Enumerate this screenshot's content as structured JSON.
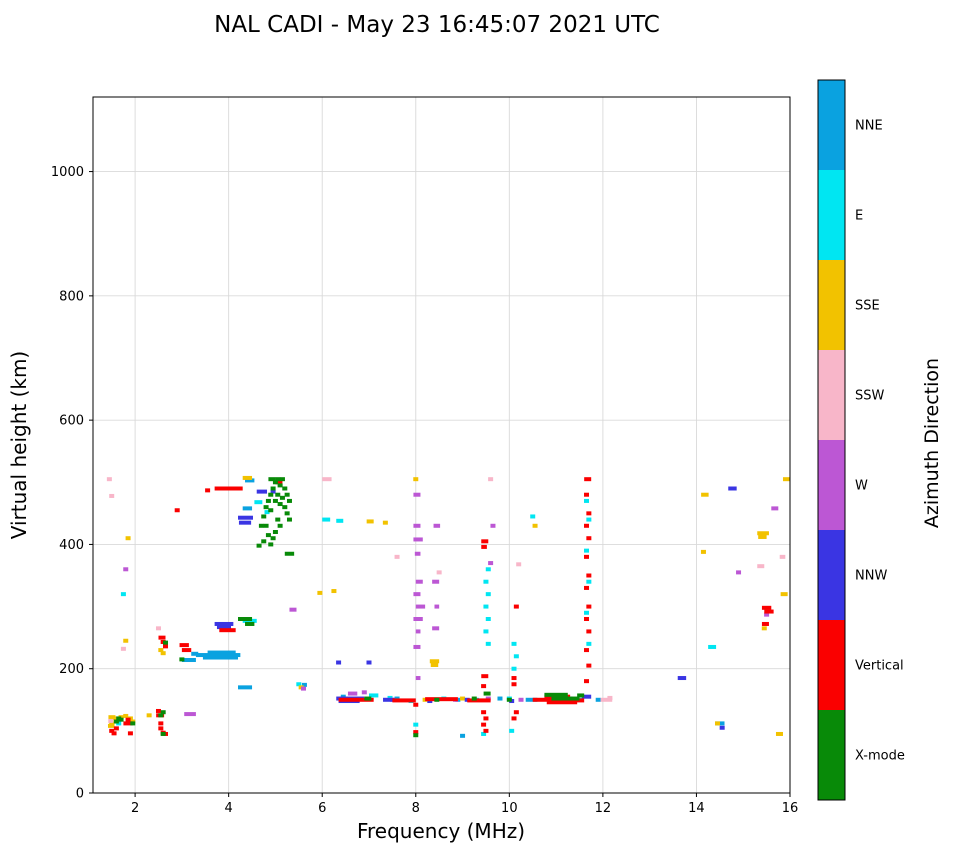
{
  "chart_data": {
    "type": "scatter",
    "title": "NAL CADI - May 23 16:45:07 2021 UTC",
    "xlabel": "Frequency (MHz)",
    "ylabel": "Virtual height (km)",
    "xlim": [
      1.1,
      16
    ],
    "ylim": [
      0,
      1120
    ],
    "xticks": [
      2,
      4,
      6,
      8,
      10,
      12,
      14,
      16
    ],
    "yticks": [
      0,
      200,
      400,
      600,
      800,
      1000
    ],
    "grid": true,
    "legend": {
      "title": "Azimuth Direction",
      "position": "right-colorbar",
      "entries": [
        {
          "label": "NNE",
          "color": "#0AA2E0"
        },
        {
          "label": "E",
          "color": "#00E6F2"
        },
        {
          "label": "SSE",
          "color": "#F2C200"
        },
        {
          "label": "SSW",
          "color": "#F8B6C9"
        },
        {
          "label": "W",
          "color": "#BC57D4"
        },
        {
          "label": "NNW",
          "color": "#3A35E3"
        },
        {
          "label": "Vertical",
          "color": "#FA0000"
        },
        {
          "label": "X-mode",
          "color": "#088A08"
        }
      ]
    },
    "series": [
      {
        "name": "NNE",
        "color": "#0AA2E0",
        "bars": [
          [
            3.3,
            4.25,
            222
          ],
          [
            3.45,
            4.2,
            218
          ],
          [
            3.55,
            4.15,
            226
          ],
          [
            3.2,
            3.35,
            224
          ],
          [
            3.0,
            3.3,
            214
          ],
          [
            4.2,
            4.5,
            170
          ],
          [
            4.3,
            4.5,
            458
          ],
          [
            4.35,
            4.55,
            503
          ],
          [
            14.4,
            14.6,
            112
          ],
          [
            10.35,
            10.6,
            150
          ]
        ],
        "points": [
          [
            7.6,
            152
          ],
          [
            8.9,
            150
          ],
          [
            9.8,
            152
          ],
          [
            11.9,
            150
          ],
          [
            6.45,
            155
          ],
          [
            9.0,
            92
          ],
          [
            5.62,
            174
          ]
        ]
      },
      {
        "name": "E",
        "color": "#00E6F2",
        "bars": [
          [
            4.55,
            4.72,
            468
          ],
          [
            4.3,
            4.6,
            277
          ],
          [
            6.0,
            6.17,
            440
          ],
          [
            6.3,
            6.45,
            438
          ],
          [
            7.0,
            7.2,
            157
          ],
          [
            14.25,
            14.42,
            235
          ]
        ],
        "points": [
          [
            1.65,
            112
          ],
          [
            1.75,
            320
          ],
          [
            5.5,
            175
          ],
          [
            8.0,
            110
          ],
          [
            9.55,
            360
          ],
          [
            9.5,
            340
          ],
          [
            9.55,
            320
          ],
          [
            9.5,
            300
          ],
          [
            9.55,
            280
          ],
          [
            9.5,
            260
          ],
          [
            9.55,
            240
          ],
          [
            9.45,
            95
          ],
          [
            10.1,
            240
          ],
          [
            10.15,
            220
          ],
          [
            10.1,
            200
          ],
          [
            10.05,
            100
          ],
          [
            10.5,
            445
          ],
          [
            11.65,
            470
          ],
          [
            11.7,
            440
          ],
          [
            11.65,
            390
          ],
          [
            11.7,
            340
          ],
          [
            11.65,
            290
          ],
          [
            11.7,
            240
          ],
          [
            6.55,
            150
          ],
          [
            7.45,
            153
          ],
          [
            7.9,
            148
          ],
          [
            8.6,
            152
          ],
          [
            9.3,
            150
          ],
          [
            10.0,
            152
          ],
          [
            10.9,
            148
          ],
          [
            11.5,
            150
          ],
          [
            4.82,
            452
          ]
        ]
      },
      {
        "name": "SSE",
        "color": "#F2C200",
        "bars": [
          [
            1.42,
            1.56,
            108
          ],
          [
            1.43,
            1.58,
            122
          ],
          [
            4.3,
            4.5,
            507
          ],
          [
            6.95,
            7.1,
            437
          ],
          [
            8.3,
            8.5,
            212
          ],
          [
            8.32,
            8.48,
            206
          ],
          [
            14.1,
            14.26,
            480
          ],
          [
            15.3,
            15.55,
            418
          ],
          [
            15.32,
            15.5,
            412
          ],
          [
            15.7,
            15.85,
            95
          ],
          [
            15.8,
            15.95,
            320
          ],
          [
            15.85,
            16.0,
            505
          ]
        ],
        "points": [
          [
            1.5,
            112
          ],
          [
            1.55,
            120
          ],
          [
            1.6,
            118
          ],
          [
            1.7,
            122
          ],
          [
            1.8,
            124
          ],
          [
            1.9,
            120
          ],
          [
            1.95,
            115
          ],
          [
            1.85,
            410
          ],
          [
            1.8,
            245
          ],
          [
            2.3,
            125
          ],
          [
            2.55,
            230
          ],
          [
            2.6,
            225
          ],
          [
            5.55,
            170
          ],
          [
            5.95,
            322
          ],
          [
            6.25,
            325
          ],
          [
            7.35,
            435
          ],
          [
            8.0,
            505
          ],
          [
            8.2,
            150
          ],
          [
            9.0,
            152
          ],
          [
            10.55,
            430
          ],
          [
            14.15,
            388
          ],
          [
            14.45,
            112
          ],
          [
            15.45,
            265
          ]
        ]
      },
      {
        "name": "SSW",
        "color": "#F8B6C9",
        "bars": [
          [
            6.0,
            6.2,
            505
          ],
          [
            11.95,
            12.2,
            150
          ],
          [
            15.3,
            15.45,
            365
          ],
          [
            15.78,
            15.9,
            380
          ]
        ],
        "points": [
          [
            1.45,
            505
          ],
          [
            1.5,
            478
          ],
          [
            1.48,
            116
          ],
          [
            1.75,
            232
          ],
          [
            2.5,
            265
          ],
          [
            7.6,
            380
          ],
          [
            8.5,
            355
          ],
          [
            9.6,
            505
          ],
          [
            10.2,
            368
          ],
          [
            12.15,
            153
          ]
        ]
      },
      {
        "name": "W",
        "color": "#BC57D4",
        "bars": [
          [
            3.05,
            3.3,
            127
          ],
          [
            5.3,
            5.45,
            295
          ],
          [
            6.55,
            6.75,
            160
          ],
          [
            7.95,
            8.1,
            480
          ],
          [
            7.95,
            8.1,
            430
          ],
          [
            7.95,
            8.15,
            408
          ],
          [
            7.98,
            8.1,
            385
          ],
          [
            8.0,
            8.15,
            340
          ],
          [
            7.95,
            8.1,
            320
          ],
          [
            8.0,
            8.2,
            300
          ],
          [
            7.95,
            8.15,
            280
          ],
          [
            8.0,
            8.1,
            260
          ],
          [
            7.95,
            8.1,
            235
          ],
          [
            8.0,
            8.1,
            185
          ],
          [
            8.38,
            8.52,
            430
          ],
          [
            8.35,
            8.5,
            340
          ],
          [
            8.4,
            8.5,
            300
          ],
          [
            8.35,
            8.5,
            265
          ],
          [
            15.6,
            15.75,
            458
          ]
        ],
        "points": [
          [
            1.8,
            360
          ],
          [
            5.6,
            168
          ],
          [
            6.9,
            162
          ],
          [
            7.5,
            150
          ],
          [
            8.85,
            150
          ],
          [
            9.55,
            152
          ],
          [
            9.65,
            430
          ],
          [
            9.6,
            370
          ],
          [
            10.25,
            150
          ],
          [
            11.05,
            152
          ],
          [
            14.9,
            355
          ],
          [
            15.5,
            287
          ]
        ]
      },
      {
        "name": "NNW",
        "color": "#3A35E3",
        "bars": [
          [
            3.7,
            4.1,
            272
          ],
          [
            3.75,
            4.05,
            267
          ],
          [
            4.2,
            4.52,
            443
          ],
          [
            4.22,
            4.48,
            435
          ],
          [
            4.6,
            4.82,
            485
          ],
          [
            6.3,
            6.9,
            152
          ],
          [
            6.35,
            6.8,
            148
          ],
          [
            7.3,
            7.55,
            150
          ],
          [
            11.55,
            11.75,
            155
          ],
          [
            13.6,
            13.78,
            185
          ],
          [
            14.68,
            14.86,
            490
          ]
        ],
        "points": [
          [
            6.35,
            210
          ],
          [
            7.0,
            210
          ],
          [
            8.3,
            148
          ],
          [
            9.1,
            150
          ],
          [
            10.05,
            148
          ],
          [
            11.3,
            152
          ],
          [
            14.55,
            105
          ],
          [
            4.95,
            485
          ]
        ]
      },
      {
        "name": "Vertical",
        "color": "#FA0000",
        "bars": [
          [
            1.75,
            1.95,
            112
          ],
          [
            2.45,
            2.62,
            125
          ],
          [
            2.5,
            2.65,
            250
          ],
          [
            2.95,
            3.15,
            238
          ],
          [
            3.0,
            3.2,
            230
          ],
          [
            3.7,
            4.3,
            490
          ],
          [
            3.8,
            4.15,
            262
          ],
          [
            5.0,
            5.15,
            500
          ],
          [
            6.35,
            7.1,
            150
          ],
          [
            7.5,
            8.0,
            149
          ],
          [
            8.2,
            8.9,
            151
          ],
          [
            9.1,
            9.6,
            149
          ],
          [
            10.5,
            11.0,
            150
          ],
          [
            11.1,
            11.6,
            149
          ],
          [
            10.75,
            11.3,
            155
          ],
          [
            10.8,
            11.45,
            146
          ],
          [
            9.4,
            9.55,
            405
          ],
          [
            9.4,
            9.52,
            396
          ],
          [
            9.4,
            9.55,
            188
          ],
          [
            11.6,
            11.75,
            505
          ],
          [
            15.4,
            15.6,
            298
          ],
          [
            15.45,
            15.65,
            292
          ],
          [
            15.4,
            15.55,
            272
          ]
        ],
        "points": [
          [
            1.5,
            100
          ],
          [
            1.55,
            96
          ],
          [
            1.6,
            104
          ],
          [
            1.85,
            118
          ],
          [
            1.9,
            96
          ],
          [
            2.5,
            132
          ],
          [
            2.55,
            112
          ],
          [
            2.55,
            104
          ],
          [
            2.6,
            97
          ],
          [
            2.65,
            95
          ],
          [
            2.6,
            243
          ],
          [
            2.65,
            236
          ],
          [
            2.9,
            455
          ],
          [
            3.55,
            487
          ],
          [
            8.0,
            98
          ],
          [
            8.0,
            142
          ],
          [
            9.45,
            172
          ],
          [
            9.45,
            130
          ],
          [
            9.5,
            120
          ],
          [
            9.45,
            110
          ],
          [
            9.5,
            100
          ],
          [
            10.1,
            185
          ],
          [
            10.1,
            175
          ],
          [
            10.15,
            130
          ],
          [
            10.1,
            120
          ],
          [
            10.15,
            300
          ],
          [
            11.65,
            480
          ],
          [
            11.7,
            450
          ],
          [
            11.65,
            430
          ],
          [
            11.7,
            410
          ],
          [
            11.65,
            380
          ],
          [
            11.7,
            350
          ],
          [
            11.65,
            330
          ],
          [
            11.7,
            300
          ],
          [
            11.65,
            280
          ],
          [
            11.7,
            260
          ],
          [
            11.65,
            230
          ],
          [
            11.7,
            205
          ],
          [
            11.65,
            180
          ]
        ]
      },
      {
        "name": "X-mode",
        "color": "#088A08",
        "bars": [
          [
            4.2,
            4.5,
            280
          ],
          [
            4.35,
            4.55,
            272
          ],
          [
            4.85,
            5.0,
            505
          ],
          [
            5.2,
            5.4,
            385
          ],
          [
            6.9,
            7.05,
            152
          ],
          [
            9.45,
            9.6,
            160
          ],
          [
            10.75,
            11.25,
            158
          ],
          [
            10.9,
            11.5,
            152
          ],
          [
            11.45,
            11.6,
            157
          ]
        ],
        "points": [
          [
            1.6,
            115
          ],
          [
            1.65,
            120
          ],
          [
            1.7,
            118
          ],
          [
            1.95,
            112
          ],
          [
            2.55,
            125
          ],
          [
            2.6,
            130
          ],
          [
            2.6,
            95
          ],
          [
            2.65,
            242
          ],
          [
            3.0,
            215
          ],
          [
            4.65,
            398
          ],
          [
            4.7,
            430
          ],
          [
            4.75,
            445
          ],
          [
            4.75,
            405
          ],
          [
            4.8,
            460
          ],
          [
            4.8,
            430
          ],
          [
            4.85,
            470
          ],
          [
            4.85,
            415
          ],
          [
            4.9,
            480
          ],
          [
            4.9,
            455
          ],
          [
            4.9,
            400
          ],
          [
            4.95,
            490
          ],
          [
            4.95,
            410
          ],
          [
            5.0,
            500
          ],
          [
            5.0,
            470
          ],
          [
            5.0,
            420
          ],
          [
            5.05,
            505
          ],
          [
            5.05,
            480
          ],
          [
            5.05,
            440
          ],
          [
            5.1,
            495
          ],
          [
            5.1,
            465
          ],
          [
            5.1,
            430
          ],
          [
            5.15,
            505
          ],
          [
            5.15,
            475
          ],
          [
            5.2,
            490
          ],
          [
            5.2,
            460
          ],
          [
            5.25,
            480
          ],
          [
            5.25,
            450
          ],
          [
            5.3,
            470
          ],
          [
            5.3,
            440
          ],
          [
            8.0,
            93
          ],
          [
            8.45,
            150
          ],
          [
            9.25,
            152
          ],
          [
            10.0,
            150
          ]
        ]
      }
    ]
  }
}
